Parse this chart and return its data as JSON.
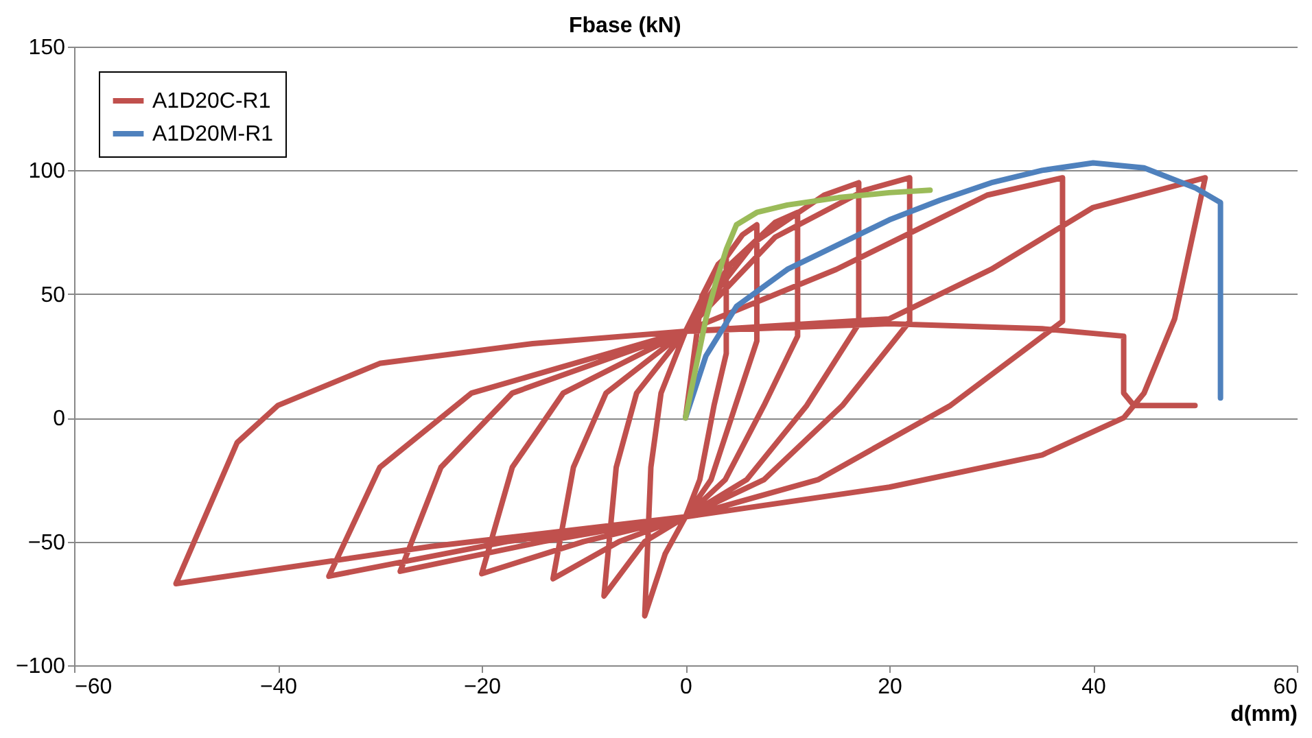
{
  "chart_data": {
    "type": "line",
    "xlabel": "d(mm)",
    "ylabel": "Fbase (kN)",
    "xlim": [
      -60,
      60
    ],
    "xticks": [
      -60,
      -40,
      -20,
      0,
      20,
      40,
      60
    ],
    "ylim": [
      -100,
      150
    ],
    "yticks": [
      -100,
      -50,
      0,
      50,
      100,
      150
    ],
    "grid": "y",
    "legend": "top left",
    "line_style": "solid",
    "marker": "none",
    "series": [
      {
        "name": "A1D20C-R1",
        "color": "#c0504d",
        "x": [
          0,
          1.6,
          3.2,
          4,
          4,
          2.8,
          1.4,
          0,
          -2,
          -4,
          -3.4,
          -2.4,
          0,
          2.8,
          5.6,
          7,
          7,
          4.9,
          2.5,
          0,
          -4,
          -8,
          -6.8,
          -4.8,
          0,
          4.4,
          8.8,
          11,
          11,
          7.7,
          3.9,
          0,
          -6.5,
          -13,
          -11,
          -7.8,
          0,
          6.8,
          13.6,
          17,
          17,
          11.9,
          6,
          0,
          -10,
          -20,
          -17,
          -12,
          0,
          8.8,
          17.6,
          22,
          22,
          15.4,
          7.7,
          0,
          -14,
          -28,
          -24,
          -17,
          0,
          14.8,
          29.6,
          37,
          37,
          26,
          13,
          0,
          -17.5,
          -35,
          -30,
          -21,
          0,
          20,
          30,
          40,
          51,
          48,
          45,
          43,
          35,
          20,
          0,
          -25,
          -50,
          -44,
          -40,
          -30,
          -15,
          0,
          20,
          35,
          43,
          43,
          44,
          50
        ],
        "values": [
          0,
          49,
          62,
          65,
          26,
          5,
          -25,
          -40,
          -55,
          -80,
          -20,
          10,
          35,
          58,
          74,
          78,
          31,
          5,
          -25,
          -40,
          -50,
          -72,
          -20,
          10,
          35,
          62,
          79,
          83,
          33,
          5,
          -25,
          -40,
          -50,
          -65,
          -20,
          10,
          35,
          71,
          90,
          95,
          38,
          5,
          -25,
          -40,
          -50,
          -63,
          -20,
          10,
          35,
          73,
          92,
          97,
          39,
          5,
          -25,
          -40,
          -50,
          -62,
          -20,
          10,
          35,
          60,
          90,
          97,
          39,
          5,
          -25,
          -40,
          -50,
          -64,
          -20,
          10,
          35,
          40,
          60,
          85,
          97,
          40,
          10,
          0,
          -15,
          -28,
          -40,
          -52,
          -67,
          -10,
          5,
          22,
          30,
          35,
          38,
          36,
          33,
          10,
          5,
          5
        ]
      },
      {
        "name": "A1D20M-R1",
        "color": "#4f81bd",
        "x": [
          0,
          2,
          5,
          10,
          15,
          20,
          25,
          30,
          35,
          40,
          45,
          50,
          52.5,
          52.5,
          52.5
        ],
        "values": [
          0,
          25,
          45,
          60,
          70,
          80,
          88,
          95,
          100,
          103,
          101,
          93,
          87,
          40,
          8
        ]
      },
      {
        "color": "#9bbb59",
        "x": [
          0,
          1,
          2,
          3,
          4,
          5,
          7,
          10,
          15,
          20,
          24
        ],
        "values": [
          0,
          20,
          40,
          55,
          68,
          78,
          83,
          86,
          89,
          91,
          92
        ]
      }
    ]
  }
}
